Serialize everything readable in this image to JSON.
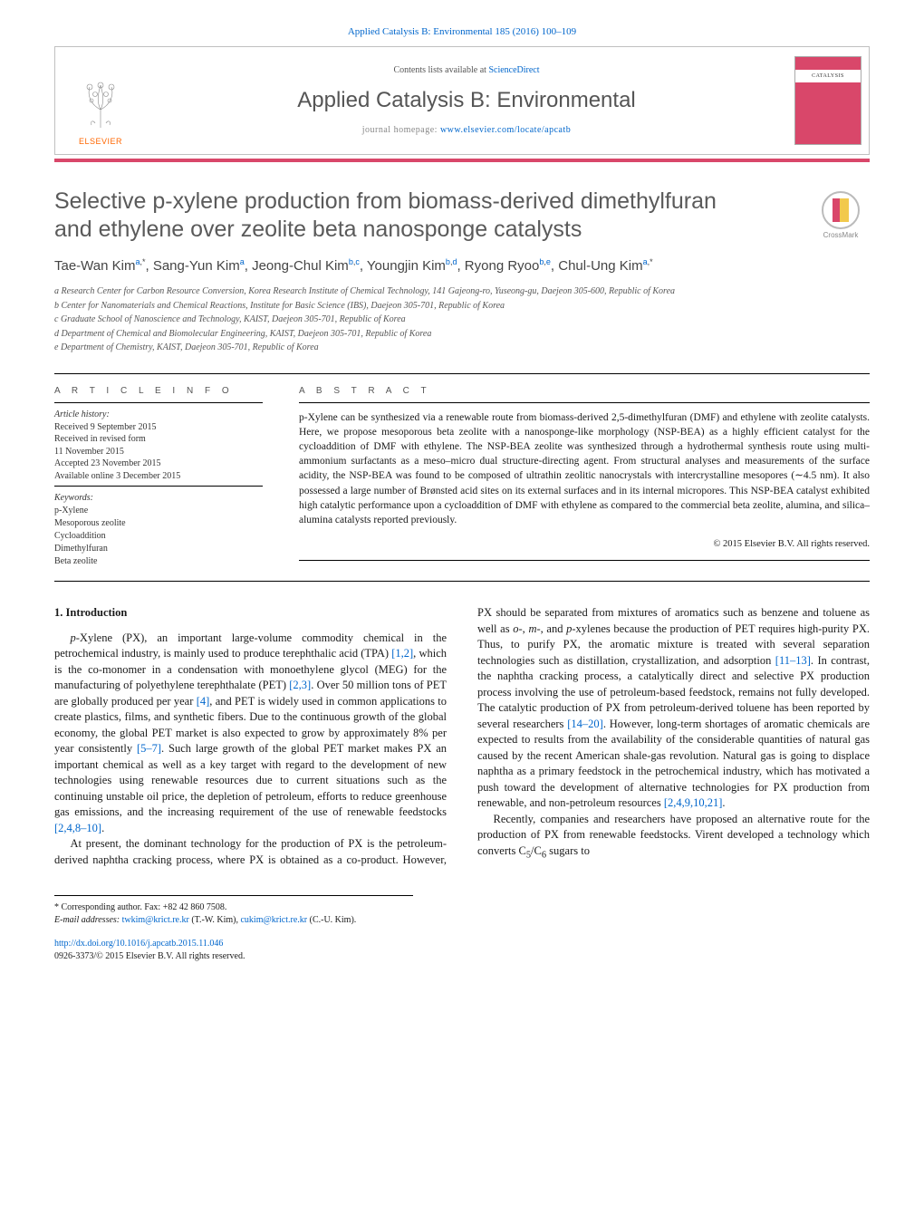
{
  "journal": {
    "topline": "Applied Catalysis B: Environmental 185 (2016) 100–109",
    "contents_prefix": "Contents lists available at ",
    "contents_link": "ScienceDirect",
    "title": "Applied Catalysis B: Environmental",
    "homepage_prefix": "journal homepage: ",
    "homepage_url": "www.elsevier.com/locate/apcatb",
    "elsevier_label": "ELSEVIER",
    "cover_band": "CATALYSIS",
    "crossmark_label": "CrossMark"
  },
  "article": {
    "title_line1": "Selective p-xylene production from biomass-derived dimethylfuran",
    "title_line2": "and ethylene over zeolite beta nanosponge catalysts",
    "authors_html": "Tae-Wan Kim<sup><a class='aff' href='#'>a</a>,*</sup>, Sang-Yun Kim<sup><a class='aff' href='#'>a</a></sup>, Jeong-Chul Kim<sup><a class='aff' href='#'>b</a>,<a class='aff' href='#'>c</a></sup>, Youngjin Kim<sup><a class='aff' href='#'>b</a>,<a class='aff' href='#'>d</a></sup>, Ryong Ryoo<sup><a class='aff' href='#'>b</a>,<a class='aff' href='#'>e</a></sup>, Chul-Ung Kim<sup><a class='aff' href='#'>a</a>,*</sup>"
  },
  "affiliations": {
    "a": "a Research Center for Carbon Resource Conversion, Korea Research Institute of Chemical Technology, 141 Gajeong-ro, Yuseong-gu, Daejeon 305-600, Republic of Korea",
    "b": "b Center for Nanomaterials and Chemical Reactions, Institute for Basic Science (IBS), Daejeon 305-701, Republic of Korea",
    "c": "c Graduate School of Nanoscience and Technology, KAIST, Daejeon 305-701, Republic of Korea",
    "d": "d Department of Chemical and Biomolecular Engineering, KAIST, Daejeon 305-701, Republic of Korea",
    "e": "e Department of Chemistry, KAIST, Daejeon 305-701, Republic of Korea"
  },
  "article_info": {
    "heading": "A R T I C L E   I N F O",
    "hist_label": "Article history:",
    "received": "Received 9 September 2015",
    "revised1": "Received in revised form",
    "revised2": "11 November 2015",
    "accepted": "Accepted 23 November 2015",
    "online": "Available online 3 December 2015",
    "kw_label": "Keywords:",
    "kw1": "p-Xylene",
    "kw2": "Mesoporous zeolite",
    "kw3": "Cycloaddition",
    "kw4": "Dimethylfuran",
    "kw5": "Beta zeolite"
  },
  "abstract": {
    "heading": "A B S T R A C T",
    "text": "p-Xylene can be synthesized via a renewable route from biomass-derived 2,5-dimethylfuran (DMF) and ethylene with zeolite catalysts. Here, we propose mesoporous beta zeolite with a nanosponge-like morphology (NSP-BEA) as a highly efficient catalyst for the cycloaddition of DMF with ethylene. The NSP-BEA zeolite was synthesized through a hydrothermal synthesis route using multi-ammonium surfactants as a meso–micro dual structure-directing agent. From structural analyses and measurements of the surface acidity, the NSP-BEA was found to be composed of ultrathin zeolitic nanocrystals with intercrystalline mesopores (∼4.5 nm). It also possessed a large number of Brønsted acid sites on its external surfaces and in its internal micropores. This NSP-BEA catalyst exhibited high catalytic performance upon a cycloaddition of DMF with ethylene as compared to the commercial beta zeolite, alumina, and silica–alumina catalysts reported previously.",
    "copyright": "© 2015 Elsevier B.V. All rights reserved."
  },
  "body": {
    "sec_head": "1. Introduction",
    "p1_html": "<i>p</i>-Xylene (PX), an important large-volume commodity chemical in the petrochemical industry, is mainly used to produce terephthalic acid (TPA) <a class='ref' href='#'>[1,2]</a>, which is the co-monomer in a condensation with monoethylene glycol (MEG) for the manufacturing of polyethylene terephthalate (PET) <a class='ref' href='#'>[2,3]</a>. Over 50 million tons of PET are globally produced per year <a class='ref' href='#'>[4]</a>, and PET is widely used in common applications to create plastics, films, and synthetic fibers. Due to the continuous growth of the global economy, the global PET market is also expected to grow by approximately 8% per year consistently <a class='ref' href='#'>[5–7]</a>. Such large growth of the global PET market makes PX an important chemical as well as a key target with regard to the development of new technologies using renewable resources due to current situations such as the continuing unstable oil price, the depletion of petroleum, efforts to reduce greenhouse gas emissions, and the increasing requirement of the use of renewable feedstocks <a class='ref' href='#'>[2,4,8–10]</a>.",
    "p2_html": "At present, the dominant technology for the production of PX is the petroleum-derived naphtha cracking process, where PX is obtained as a co-product. However, PX should be separated from mixtures of aromatics such as benzene and toluene as well as <i>o</i>-, <i>m</i>-, and <i>p</i>-xylenes because the production of PET requires high-purity PX. Thus, to purify PX, the aromatic mixture is treated with several separation technologies such as distillation, crystallization, and adsorption <a class='ref' href='#'>[11–13]</a>. In contrast, the naphtha cracking process, a catalytically direct and selective PX production process involving the use of petroleum-based feedstock, remains not fully developed. The catalytic production of PX from petroleum-derived toluene has been reported by several researchers <a class='ref' href='#'>[14–20]</a>. However, long-term shortages of aromatic chemicals are expected to results from the availability of the considerable quantities of natural gas caused by the recent American shale-gas revolution. Natural gas is going to displace naphtha as a primary feedstock in the petrochemical industry, which has motivated a push toward the development of alternative technologies for PX production from renewable, and non-petroleum resources <a class='ref' href='#'>[2,4,9,10,21]</a>.",
    "p3_html": "Recently, companies and researchers have proposed an alternative route for the production of PX from renewable feedstocks. Virent developed a technology which converts C<sub>5</sub>/C<sub>6</sub> sugars to"
  },
  "footnote": {
    "corr": "* Corresponding author. Fax: +82 42 860 7508.",
    "email_label": "E-mail addresses: ",
    "email1": "twkim@krict.re.kr",
    "email1_who": " (T.-W. Kim), ",
    "email2": "cukim@krict.re.kr",
    "email2_who": " (C.-U. Kim)."
  },
  "doi": {
    "url": "http://dx.doi.org/10.1016/j.apcatb.2015.11.046",
    "issn_line": "0926-3373/© 2015 Elsevier B.V. All rights reserved."
  },
  "colors": {
    "link": "#0066cc",
    "accent": "#d9476a",
    "elsevier_orange": "#ff6600",
    "text_gray": "#5a5a5a"
  }
}
